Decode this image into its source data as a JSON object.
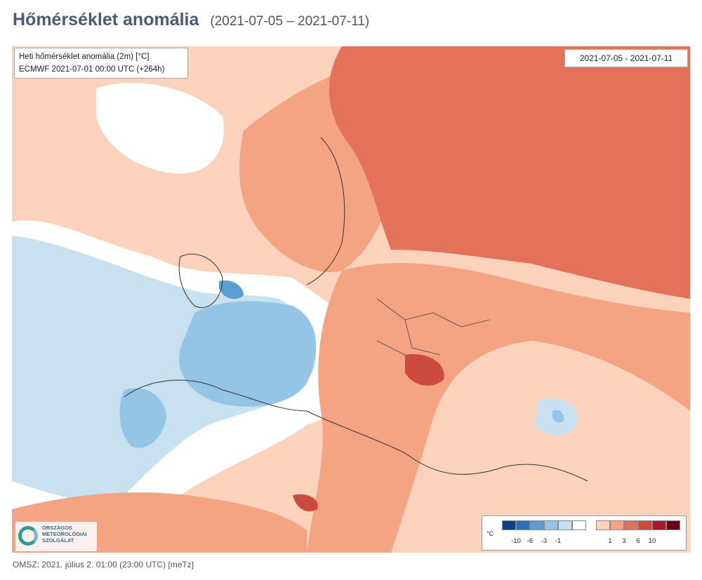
{
  "header": {
    "title": "Hőmérséklet anomália",
    "period": "(2021-07-05 – 2021-07-11)"
  },
  "map": {
    "info_line1": "Heti hőmérséklet anomália (2m) [°C]",
    "info_line2": "ECMWF 2021-07-01 00:00 UTC (+264h)",
    "date_range": "2021-07-05 - 2021-07-11"
  },
  "legend": {
    "unit": "°C",
    "colors": [
      "#0d3f8c",
      "#2b6fb8",
      "#5a9fd4",
      "#94c4e6",
      "#c8e1f1",
      "#ffffff",
      "#fbd3bd",
      "#f4a482",
      "#e4725a",
      "#cd4a3e",
      "#a8172e",
      "#6b0317"
    ],
    "ticks": [
      "-10",
      "-6",
      "-3",
      "-1",
      "1",
      "3",
      "6",
      "10"
    ]
  },
  "logo": {
    "text_line1": "ORSZÁGOS",
    "text_line2": "METEOROLÓGIAI",
    "text_line3": "SZOLGÁLAT"
  },
  "footer": {
    "text": "OMSZ: 2021. július 2. 01:00 (23:00 UTC) [meTz]"
  }
}
